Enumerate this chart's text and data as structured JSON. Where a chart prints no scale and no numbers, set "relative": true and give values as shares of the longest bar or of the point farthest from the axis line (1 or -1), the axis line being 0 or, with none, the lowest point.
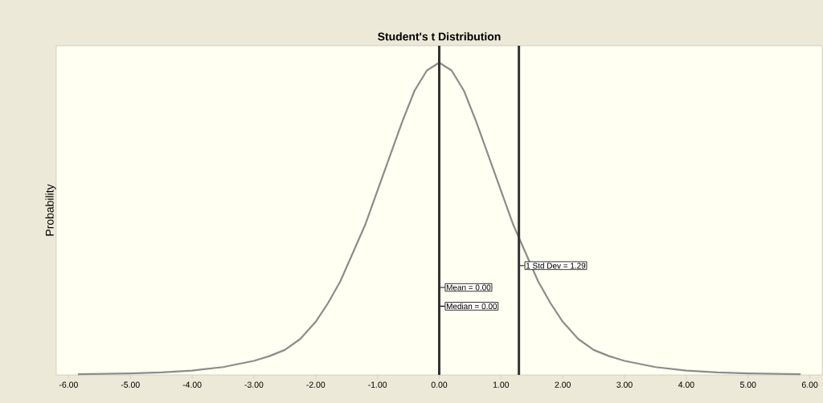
{
  "chart_data": {
    "type": "line",
    "title": "Student's t Distribution",
    "ylabel": "Probability",
    "relative": true,
    "x": [
      -5.85,
      -5,
      -4.5,
      -4,
      -3.5,
      -3,
      -2.75,
      -2.5,
      -2.25,
      -2,
      -1.8,
      -1.6,
      -1.4,
      -1.2,
      -1,
      -0.8,
      -0.6,
      -0.4,
      -0.2,
      0,
      0.2,
      0.4,
      0.6,
      0.8,
      1,
      1.2,
      1.4,
      1.6,
      1.8,
      2,
      2.25,
      2.5,
      2.75,
      3,
      3.5,
      4,
      4.5,
      5,
      5.85
    ],
    "series": [
      {
        "color": "#8c8c8c",
        "values": [
          0.002,
          0.005,
          0.008,
          0.014,
          0.025,
          0.045,
          0.06,
          0.08,
          0.115,
          0.17,
          0.23,
          0.3,
          0.39,
          0.48,
          0.59,
          0.7,
          0.81,
          0.91,
          0.975,
          1,
          0.975,
          0.91,
          0.81,
          0.7,
          0.59,
          0.48,
          0.39,
          0.3,
          0.23,
          0.17,
          0.115,
          0.08,
          0.06,
          0.045,
          0.025,
          0.014,
          0.008,
          0.005,
          0.002
        ]
      }
    ],
    "xlim": [
      -6.2,
      6.2
    ],
    "xticks": [
      {
        "value": -6,
        "label": "-6.00"
      },
      {
        "value": -5,
        "label": "-5.00"
      },
      {
        "value": -4,
        "label": "-4.00"
      },
      {
        "value": -3,
        "label": "-3.00"
      },
      {
        "value": -2,
        "label": "-2.00"
      },
      {
        "value": -1,
        "label": "-1.00"
      },
      {
        "value": 0,
        "label": "0.00"
      },
      {
        "value": 1,
        "label": "1.00"
      },
      {
        "value": 2,
        "label": "2.00"
      },
      {
        "value": 3,
        "label": "3.00"
      },
      {
        "value": 4,
        "label": "4.00"
      },
      {
        "value": 5,
        "label": "5.00"
      },
      {
        "value": 6,
        "label": "6.00"
      }
    ],
    "ref_lines": [
      {
        "axis": "x",
        "value": 0,
        "label": "Mean = 0.00",
        "color": "#333333"
      },
      {
        "axis": "x",
        "value": 1.29,
        "label": "1 Std Dev = 1.29",
        "color": "#333333"
      }
    ],
    "annotations": [
      {
        "text": "Median = 0.00",
        "x": 0
      }
    ],
    "grid": false
  }
}
